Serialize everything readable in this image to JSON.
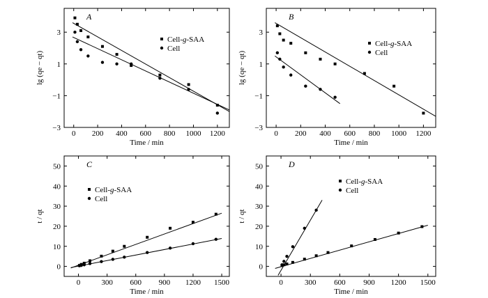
{
  "chart_data": [
    {
      "panel": "A",
      "type": "scatter",
      "xlabel": "Time / min",
      "ylabel": "lg (qe − qt)",
      "xlim": [
        -80,
        1300
      ],
      "ylim": [
        -3,
        4.5
      ],
      "xticks": [
        0,
        200,
        400,
        600,
        800,
        1000,
        1200
      ],
      "yticks": [
        -3,
        -1,
        1,
        3
      ],
      "grid": false,
      "legend_position": "top-right",
      "series": [
        {
          "name": "Cell-g-SAA",
          "marker": "square",
          "points": [
            [
              10,
              3.9
            ],
            [
              30,
              3.5
            ],
            [
              60,
              3.1
            ],
            [
              120,
              2.7
            ],
            [
              240,
              2.1
            ],
            [
              360,
              1.6
            ],
            [
              480,
              0.9
            ],
            [
              720,
              0.3
            ],
            [
              960,
              -0.3
            ],
            [
              1200,
              -1.6
            ]
          ],
          "fit": {
            "x": [
              -10,
              1300
            ],
            "y": [
              3.6,
              -2.0
            ]
          }
        },
        {
          "name": "Cell",
          "marker": "circle",
          "points": [
            [
              10,
              3.0
            ],
            [
              30,
              2.4
            ],
            [
              60,
              1.9
            ],
            [
              120,
              1.5
            ],
            [
              240,
              1.1
            ],
            [
              360,
              1.0
            ],
            [
              480,
              1.0
            ],
            [
              720,
              0.1
            ],
            [
              960,
              -0.6
            ],
            [
              1200,
              -2.1
            ]
          ],
          "fit": {
            "x": [
              -10,
              1300
            ],
            "y": [
              2.7,
              -1.9
            ]
          }
        }
      ]
    },
    {
      "panel": "B",
      "type": "scatter",
      "xlabel": "Time / min",
      "ylabel": "lg (qe − qt)",
      "xlim": [
        -80,
        1300
      ],
      "ylim": [
        -3,
        4.5
      ],
      "xticks": [
        0,
        200,
        400,
        600,
        800,
        1000,
        1200
      ],
      "yticks": [
        -3,
        -1,
        1,
        3
      ],
      "grid": false,
      "legend_position": "top-right",
      "series": [
        {
          "name": "Cell-g-SAA",
          "marker": "square",
          "points": [
            [
              10,
              3.4
            ],
            [
              30,
              2.9
            ],
            [
              60,
              2.5
            ],
            [
              120,
              2.3
            ],
            [
              240,
              1.7
            ],
            [
              360,
              1.3
            ],
            [
              480,
              1.0
            ],
            [
              720,
              0.4
            ],
            [
              960,
              -0.4
            ],
            [
              1200,
              -2.1
            ]
          ],
          "fit": {
            "x": [
              -10,
              1300
            ],
            "y": [
              3.6,
              -2.3
            ]
          }
        },
        {
          "name": "Cell",
          "marker": "circle",
          "points": [
            [
              10,
              1.7
            ],
            [
              30,
              1.3
            ],
            [
              60,
              0.8
            ],
            [
              120,
              0.3
            ],
            [
              240,
              -0.4
            ],
            [
              360,
              -0.6
            ],
            [
              480,
              -1.1
            ]
          ],
          "fit": {
            "x": [
              -10,
              520
            ],
            "y": [
              1.5,
              -1.5
            ]
          }
        }
      ]
    },
    {
      "panel": "C",
      "type": "scatter",
      "xlabel": "Time / min",
      "ylabel": "t / qt",
      "xlim": [
        -150,
        1580
      ],
      "ylim": [
        -5,
        55
      ],
      "xticks": [
        0,
        300,
        600,
        900,
        1200,
        1500
      ],
      "yticks": [
        0,
        10,
        20,
        30,
        40,
        50
      ],
      "grid": false,
      "legend_position": "center-left",
      "series": [
        {
          "name": "Cell-g-SAA",
          "marker": "square",
          "points": [
            [
              10,
              0.5
            ],
            [
              30,
              1.0
            ],
            [
              60,
              1.6
            ],
            [
              120,
              2.8
            ],
            [
              240,
              5.1
            ],
            [
              360,
              7.6
            ],
            [
              480,
              10.0
            ],
            [
              720,
              14.5
            ],
            [
              960,
              19.0
            ],
            [
              1200,
              22.0
            ],
            [
              1440,
              26.0
            ]
          ],
          "fit": {
            "x": [
              -80,
              1500
            ],
            "y": [
              -0.8,
              26.5
            ]
          }
        },
        {
          "name": "Cell",
          "marker": "circle",
          "points": [
            [
              10,
              0.3
            ],
            [
              30,
              0.5
            ],
            [
              60,
              0.8
            ],
            [
              120,
              1.4
            ],
            [
              240,
              2.4
            ],
            [
              360,
              3.5
            ],
            [
              480,
              4.6
            ],
            [
              720,
              6.9
            ],
            [
              960,
              9.1
            ],
            [
              1200,
              11.3
            ],
            [
              1440,
              13.5
            ]
          ],
          "fit": {
            "x": [
              -80,
              1500
            ],
            "y": [
              -0.6,
              13.9
            ]
          }
        }
      ]
    },
    {
      "panel": "D",
      "type": "scatter",
      "xlabel": "Time / min",
      "ylabel": "t / qt",
      "xlim": [
        -150,
        1580
      ],
      "ylim": [
        -5,
        55
      ],
      "xticks": [
        0,
        300,
        600,
        900,
        1200,
        1500
      ],
      "yticks": [
        0,
        10,
        20,
        30,
        40,
        50
      ],
      "grid": false,
      "legend_position": "top-right",
      "series": [
        {
          "name": "Cell-g-SAA",
          "marker": "square",
          "points": [
            [
              10,
              0.4
            ],
            [
              30,
              0.8
            ],
            [
              60,
              1.2
            ],
            [
              120,
              2.0
            ],
            [
              240,
              3.6
            ],
            [
              360,
              5.3
            ],
            [
              480,
              6.9
            ],
            [
              720,
              10.2
            ],
            [
              960,
              13.4
            ],
            [
              1200,
              16.6
            ],
            [
              1440,
              19.8
            ]
          ],
          "fit": {
            "x": [
              -60,
              1500
            ],
            "y": [
              -1.0,
              20.5
            ]
          }
        },
        {
          "name": "Cell",
          "marker": "circle",
          "points": [
            [
              10,
              0.8
            ],
            [
              30,
              2.5
            ],
            [
              60,
              5.0
            ],
            [
              120,
              9.8
            ],
            [
              240,
              19.0
            ],
            [
              360,
              28.0
            ]
          ],
          "fit": {
            "x": [
              -30,
              420
            ],
            "y": [
              -4.5,
              33.0
            ]
          }
        }
      ]
    }
  ]
}
